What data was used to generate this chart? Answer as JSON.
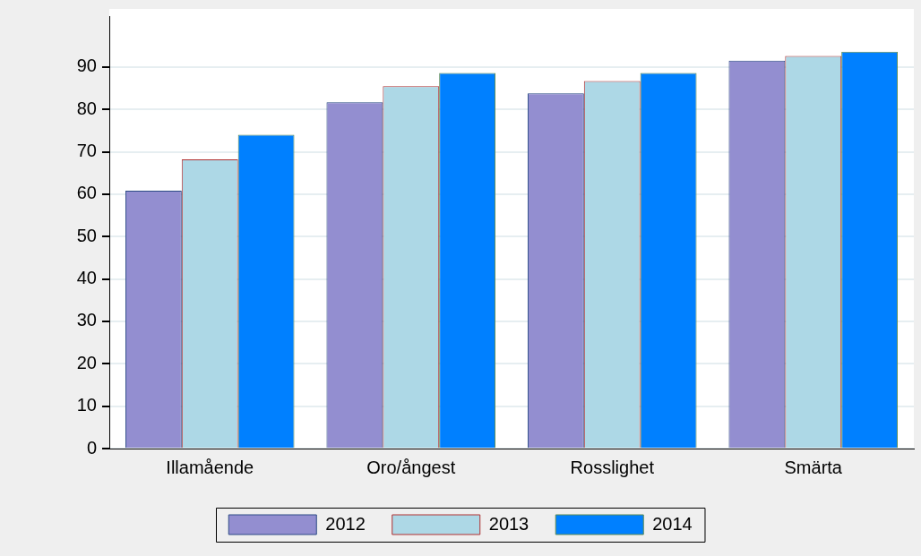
{
  "chart_data": {
    "type": "bar",
    "categories": [
      "Illamående",
      "Oro/ångest",
      "Rosslighet",
      "Smärta"
    ],
    "series": [
      {
        "name": "2012",
        "color": "#938ed0",
        "values": [
          60.8,
          81.7,
          83.8,
          91.5
        ]
      },
      {
        "name": "2013",
        "color": "#add8e6",
        "values": [
          68.2,
          85.5,
          86.7,
          92.6
        ]
      },
      {
        "name": "2014",
        "color": "#0080ff",
        "values": [
          74.0,
          88.6,
          88.6,
          93.6
        ]
      }
    ],
    "ylim": [
      0,
      102
    ],
    "yticks": [
      0,
      10,
      20,
      30,
      40,
      50,
      60,
      70,
      80,
      90
    ],
    "grid": "y",
    "legend": "bottom"
  }
}
